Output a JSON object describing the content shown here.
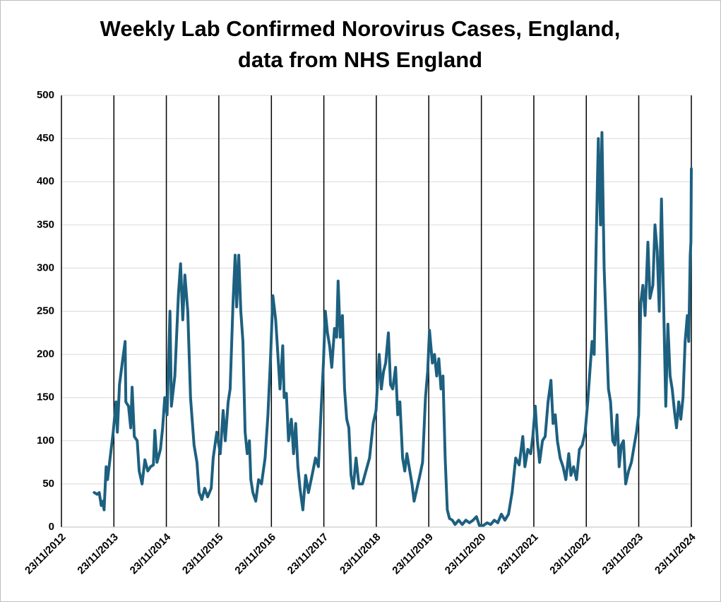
{
  "chart_data": {
    "type": "line",
    "title": [
      "Weekly Lab Confirmed Norovirus Cases, England,",
      "data from NHS England"
    ],
    "x": [
      "2013-07-09",
      "2013-07-29",
      "2013-08-13",
      "2013-08-27",
      "2013-09-06",
      "2013-09-16",
      "2013-09-30",
      "2013-10-10",
      "2013-10-24",
      "2013-11-18",
      "2013-12-08",
      "2013-12-17",
      "2014-01-01",
      "2014-01-20",
      "2014-02-09",
      "2014-02-14",
      "2014-03-05",
      "2014-03-20",
      "2014-03-30",
      "2014-04-14",
      "2014-05-04",
      "2014-05-18",
      "2014-06-07",
      "2014-06-27",
      "2014-07-17",
      "2014-08-05",
      "2014-08-25",
      "2014-09-04",
      "2014-09-19",
      "2014-10-13",
      "2014-10-28",
      "2014-11-12",
      "2014-11-28",
      "2014-12-18",
      "2014-12-28",
      "2015-01-21",
      "2015-02-15",
      "2015-03-02",
      "2015-03-17",
      "2015-04-01",
      "2015-04-21",
      "2015-05-10",
      "2015-06-04",
      "2015-06-24",
      "2015-07-09",
      "2015-07-28",
      "2015-08-17",
      "2015-09-06",
      "2015-10-01",
      "2015-10-15",
      "2015-11-09",
      "2015-12-03",
      "2015-12-23",
      "2016-01-07",
      "2016-01-27",
      "2016-02-10",
      "2016-03-01",
      "2016-03-16",
      "2016-03-26",
      "2016-04-10",
      "2016-04-24",
      "2016-05-09",
      "2016-05-24",
      "2016-06-08",
      "2016-06-23",
      "2016-07-03",
      "2016-07-17",
      "2016-08-06",
      "2016-08-26",
      "2016-09-15",
      "2016-10-10",
      "2016-10-30",
      "2016-11-18",
      "2016-12-03",
      "2016-12-23",
      "2017-01-07",
      "2017-01-22",
      "2017-02-10",
      "2017-02-20",
      "2017-03-07",
      "2017-03-22",
      "2017-04-11",
      "2017-04-26",
      "2017-05-11",
      "2017-05-26",
      "2017-06-10",
      "2017-06-30",
      "2017-07-19",
      "2017-08-08",
      "2017-09-02",
      "2017-09-26",
      "2017-10-16",
      "2017-11-05",
      "2017-11-20",
      "2017-12-03",
      "2017-12-18",
      "2018-01-02",
      "2018-01-17",
      "2018-02-05",
      "2018-02-20",
      "2018-03-02",
      "2018-03-17",
      "2018-04-01",
      "2018-04-16",
      "2018-05-01",
      "2018-05-16",
      "2018-05-31",
      "2018-06-15",
      "2018-07-05",
      "2018-07-24",
      "2018-08-18",
      "2018-09-12",
      "2018-10-07",
      "2018-11-01",
      "2018-11-21",
      "2018-12-13",
      "2018-12-28",
      "2019-01-12",
      "2019-01-27",
      "2019-02-15",
      "2019-03-02",
      "2019-03-17",
      "2019-04-06",
      "2019-04-21",
      "2019-05-06",
      "2019-05-25",
      "2019-06-09",
      "2019-06-24",
      "2019-07-09",
      "2019-07-29",
      "2019-08-13",
      "2019-09-02",
      "2019-09-22",
      "2019-10-11",
      "2019-10-31",
      "2019-11-15",
      "2019-11-28",
      "2019-12-18",
      "2020-01-02",
      "2020-01-17",
      "2020-02-01",
      "2020-02-16",
      "2020-03-01",
      "2020-03-16",
      "2020-03-31",
      "2020-04-15",
      "2020-05-05",
      "2020-05-24",
      "2020-06-18",
      "2020-07-13",
      "2020-08-07",
      "2020-09-01",
      "2020-09-26",
      "2020-10-20",
      "2020-11-09",
      "2020-12-08",
      "2021-01-02",
      "2021-01-27",
      "2021-02-21",
      "2021-03-17",
      "2021-04-11",
      "2021-05-06",
      "2021-05-31",
      "2021-06-25",
      "2021-07-20",
      "2021-08-13",
      "2021-09-07",
      "2021-09-22",
      "2021-10-12",
      "2021-11-01",
      "2021-11-16",
      "2021-12-03",
      "2021-12-18",
      "2022-01-02",
      "2022-01-22",
      "2022-02-10",
      "2022-03-02",
      "2022-03-22",
      "2022-04-06",
      "2022-04-21",
      "2022-05-06",
      "2022-05-25",
      "2022-06-14",
      "2022-07-04",
      "2022-07-24",
      "2022-08-08",
      "2022-08-27",
      "2022-09-16",
      "2022-10-06",
      "2022-10-26",
      "2022-11-15",
      "2022-12-03",
      "2022-12-18",
      "2023-01-02",
      "2023-01-17",
      "2023-02-01",
      "2023-02-15",
      "2023-03-02",
      "2023-03-12",
      "2023-03-27",
      "2023-04-11",
      "2023-04-26",
      "2023-05-11",
      "2023-05-26",
      "2023-06-10",
      "2023-06-25",
      "2023-07-10",
      "2023-07-25",
      "2023-08-09",
      "2023-08-24",
      "2023-09-13",
      "2023-10-03",
      "2023-10-23",
      "2023-11-07",
      "2023-11-22",
      "2023-12-07",
      "2023-12-22",
      "2024-01-06",
      "2024-01-26",
      "2024-02-09",
      "2024-02-29",
      "2024-03-15",
      "2024-03-30",
      "2024-04-14",
      "2024-04-29",
      "2024-05-14",
      "2024-05-29",
      "2024-06-13",
      "2024-06-28",
      "2024-07-13",
      "2024-07-28",
      "2024-08-12",
      "2024-08-27",
      "2024-09-11",
      "2024-09-26",
      "2024-10-11",
      "2024-10-26",
      "2024-11-05",
      "2024-11-15",
      "2024-11-20",
      "2024-11-23"
    ],
    "series": [
      {
        "color": "#1d6080",
        "values": [
          40,
          38,
          40,
          25,
          30,
          20,
          70,
          55,
          75,
          110,
          145,
          110,
          165,
          190,
          215,
          145,
          140,
          115,
          162,
          105,
          100,
          65,
          50,
          78,
          65,
          70,
          72,
          112,
          75,
          90,
          115,
          150,
          130,
          250,
          140,
          175,
          270,
          305,
          240,
          292,
          250,
          150,
          95,
          75,
          40,
          32,
          45,
          35,
          45,
          80,
          110,
          85,
          135,
          100,
          145,
          160,
          260,
          315,
          255,
          315,
          250,
          215,
          110,
          85,
          100,
          55,
          40,
          30,
          55,
          50,
          80,
          130,
          200,
          268,
          240,
          200,
          160,
          210,
          150,
          155,
          100,
          125,
          85,
          120,
          70,
          45,
          20,
          60,
          40,
          60,
          80,
          70,
          140,
          190,
          250,
          225,
          210,
          185,
          230,
          220,
          285,
          220,
          245,
          160,
          125,
          115,
          60,
          45,
          80,
          50,
          50,
          65,
          80,
          120,
          135,
          200,
          160,
          180,
          190,
          225,
          165,
          160,
          185,
          130,
          145,
          80,
          65,
          85,
          70,
          50,
          30,
          45,
          60,
          75,
          150,
          180,
          228,
          190,
          200,
          175,
          195,
          160,
          175,
          80,
          20,
          10,
          8,
          3,
          8,
          3,
          8,
          5,
          8,
          12,
          2,
          2,
          5,
          3,
          8,
          5,
          15,
          8,
          15,
          40,
          80,
          72,
          105,
          70,
          90,
          85,
          105,
          140,
          100,
          75,
          100,
          105,
          145,
          170,
          120,
          130,
          100,
          80,
          70,
          55,
          85,
          60,
          70,
          55,
          90,
          95,
          110,
          145,
          180,
          215,
          200,
          340,
          450,
          350,
          457,
          300,
          230,
          160,
          145,
          100,
          95,
          130,
          70,
          95,
          100,
          50,
          65,
          75,
          95,
          110,
          130,
          260,
          280,
          245,
          330,
          265,
          280,
          350,
          320,
          250,
          380,
          260,
          140,
          235,
          175,
          160,
          135,
          115,
          145,
          125,
          150,
          215,
          245,
          215,
          315,
          330,
          415
        ]
      }
    ],
    "xlim": [
      "2012-11-23",
      "2024-11-23"
    ],
    "xticks": [
      {
        "value": "2012-11-23",
        "label": "23/11/2012"
      },
      {
        "value": "2013-11-23",
        "label": "23/11/2013"
      },
      {
        "value": "2014-11-23",
        "label": "23/11/2014"
      },
      {
        "value": "2015-11-23",
        "label": "23/11/2015"
      },
      {
        "value": "2016-11-23",
        "label": "23/11/2016"
      },
      {
        "value": "2017-11-23",
        "label": "23/11/2017"
      },
      {
        "value": "2018-11-23",
        "label": "23/11/2018"
      },
      {
        "value": "2019-11-23",
        "label": "23/11/2019"
      },
      {
        "value": "2020-11-23",
        "label": "23/11/2020"
      },
      {
        "value": "2021-11-23",
        "label": "23/11/2021"
      },
      {
        "value": "2022-11-23",
        "label": "23/11/2022"
      },
      {
        "value": "2023-11-23",
        "label": "23/11/2023"
      },
      {
        "value": "2024-11-23",
        "label": "23/11/2024"
      }
    ],
    "ylim": [
      0,
      500
    ],
    "yticks": [
      0,
      50,
      100,
      150,
      200,
      250,
      300,
      350,
      400,
      450,
      500
    ],
    "grid": true
  }
}
